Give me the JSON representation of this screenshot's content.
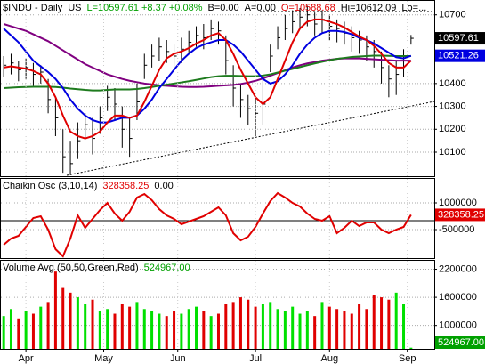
{
  "chart_data": [
    {
      "type": "ohlc",
      "title": "$INDU - Daily",
      "legend_items": [
        {
          "text": "US",
          "color": "#000000"
        },
        {
          "text": "L=10597.61 +8.37 +0.08%",
          "color": "#00a000"
        },
        {
          "text": "B=0.00",
          "color": "#000000"
        },
        {
          "text": "A=0.00",
          "color": "#000000"
        },
        {
          "text": "O=10588.68",
          "color": "#e00000"
        },
        {
          "text": "Hi=10612.09",
          "color": "#000000"
        },
        {
          "text": "Lo=...",
          "color": "#000000"
        }
      ],
      "xlim": [
        0,
        56
      ],
      "ylim": [
        9995,
        10765
      ],
      "yticks": [
        10700,
        10400,
        10300,
        10200,
        10100
      ],
      "grid": true,
      "color": "#000000",
      "high": [
        10520,
        10530,
        10500,
        10510,
        10490,
        10480,
        10420,
        10340,
        10200,
        10150,
        10230,
        10270,
        10250,
        10300,
        10390,
        10380,
        10300,
        10250,
        10400,
        10530,
        10570,
        10600,
        10590,
        10570,
        10600,
        10630,
        10650,
        10660,
        10680,
        10670,
        10610,
        10480,
        10400,
        10350,
        10340,
        10430,
        10570,
        10650,
        10700,
        10720,
        10730,
        10740,
        10710,
        10720,
        10700,
        10680,
        10670,
        10650,
        10630,
        10610,
        10590,
        10540,
        10480,
        10500,
        10550,
        10612.09
      ],
      "low": [
        10430,
        10440,
        10410,
        10420,
        10390,
        10400,
        10270,
        10170,
        10010,
        10000,
        10070,
        10160,
        10090,
        10180,
        10280,
        10240,
        10120,
        10080,
        10240,
        10420,
        10470,
        10500,
        10490,
        10470,
        10490,
        10530,
        10560,
        10550,
        10590,
        10570,
        10440,
        10300,
        10250,
        10220,
        10170,
        10220,
        10450,
        10550,
        10590,
        10620,
        10640,
        10650,
        10610,
        10620,
        10590,
        10580,
        10570,
        10540,
        10530,
        10500,
        10470,
        10400,
        10340,
        10350,
        10430,
        10570
      ],
      "close": [
        10480,
        10490,
        10460,
        10470,
        10440,
        10450,
        10330,
        10250,
        10080,
        10050,
        10150,
        10220,
        10160,
        10250,
        10340,
        10310,
        10200,
        10160,
        10320,
        10480,
        10520,
        10560,
        10540,
        10520,
        10550,
        10580,
        10610,
        10600,
        10640,
        10630,
        10500,
        10380,
        10330,
        10290,
        10270,
        10310,
        10520,
        10600,
        10640,
        10670,
        10690,
        10700,
        10660,
        10680,
        10650,
        10640,
        10620,
        10600,
        10590,
        10560,
        10540,
        10470,
        10420,
        10440,
        10500,
        10597.61
      ],
      "overlays": [
        {
          "color": "#800080",
          "values": [
            10660,
            10650,
            10640,
            10630,
            10615,
            10600,
            10585,
            10565,
            10545,
            10525,
            10505,
            10485,
            10470,
            10455,
            10440,
            10430,
            10420,
            10412,
            10406,
            10400,
            10396,
            10392,
            10390,
            10388,
            10386,
            10385,
            10385,
            10386,
            10388,
            10390,
            10392,
            10394,
            10398,
            10404,
            10412,
            10422,
            10434,
            10446,
            10458,
            10470,
            10480,
            10488,
            10494,
            10500,
            10504,
            10508,
            10510,
            10510,
            10510,
            10508,
            10506,
            10504,
            10502,
            10500,
            10500,
            10500
          ]
        },
        {
          "color": "#1e7b1e",
          "values": [
            10380,
            10382,
            10384,
            10385,
            10386,
            10386,
            10386,
            10385,
            10382,
            10378,
            10375,
            10372,
            10370,
            10370,
            10372,
            10374,
            10374,
            10374,
            10376,
            10380,
            10385,
            10390,
            10395,
            10400,
            10405,
            10410,
            10416,
            10422,
            10428,
            10432,
            10434,
            10434,
            10433,
            10432,
            10432,
            10435,
            10440,
            10448,
            10456,
            10464,
            10472,
            10480,
            10488,
            10495,
            10502,
            10508,
            10512,
            10516,
            10518,
            10520,
            10522,
            10522,
            10521,
            10520,
            10520,
            10520
          ]
        },
        {
          "color": "#0000e0",
          "values": [
            10640,
            10610,
            10580,
            10540,
            10500,
            10475,
            10450,
            10420,
            10380,
            10330,
            10290,
            10260,
            10240,
            10230,
            10230,
            10240,
            10250,
            10250,
            10260,
            10290,
            10330,
            10380,
            10420,
            10460,
            10500,
            10530,
            10555,
            10570,
            10580,
            10590,
            10590,
            10570,
            10540,
            10500,
            10460,
            10420,
            10400,
            10410,
            10440,
            10480,
            10530,
            10570,
            10600,
            10620,
            10630,
            10630,
            10625,
            10615,
            10600,
            10590,
            10575,
            10555,
            10535,
            10515,
            10510,
            10521.26
          ]
        },
        {
          "color": "#e00000",
          "values": [
            10470,
            10475,
            10470,
            10465,
            10455,
            10440,
            10400,
            10340,
            10260,
            10190,
            10170,
            10160,
            10170,
            10190,
            10230,
            10260,
            10260,
            10250,
            10260,
            10320,
            10390,
            10460,
            10510,
            10530,
            10540,
            10555,
            10575,
            10590,
            10610,
            10620,
            10590,
            10530,
            10460,
            10400,
            10340,
            10310,
            10340,
            10420,
            10500,
            10580,
            10640,
            10670,
            10680,
            10680,
            10670,
            10660,
            10645,
            10625,
            10605,
            10590,
            10565,
            10530,
            10490,
            10470,
            10470,
            10500
          ]
        }
      ],
      "last_labels": [
        {
          "value": 10597.61,
          "color": "#000000"
        },
        {
          "value": 10521.26,
          "color": "#0000e0"
        }
      ]
    },
    {
      "type": "line",
      "title": "Chaikin Osc (3,10,14)",
      "legend_items": [
        {
          "text": "328358.25",
          "color": "#e00000"
        },
        {
          "text": "0.00",
          "color": "#000000"
        }
      ],
      "xlim": [
        0,
        56
      ],
      "ylim": [
        -2100000,
        2400000
      ],
      "yticks": [
        1000000,
        -500000
      ],
      "grid": true,
      "zero_line": true,
      "color": "#e00000",
      "values": [
        -1350000,
        -1000000,
        -850000,
        -350000,
        150000,
        250000,
        -500000,
        -1600000,
        -2000000,
        -1000000,
        300000,
        -400000,
        100000,
        600000,
        1000000,
        400000,
        0,
        500000,
        1300000,
        1500000,
        1150000,
        650000,
        300000,
        100000,
        -200000,
        -50000,
        100000,
        250000,
        500000,
        750000,
        300000,
        -700000,
        -1100000,
        -900000,
        -350000,
        400000,
        1100000,
        1550000,
        1300000,
        1000000,
        800000,
        400000,
        100000,
        0,
        250000,
        -700000,
        -400000,
        0,
        -300000,
        -100000,
        -100000,
        -500000,
        -700000,
        -500000,
        -350000,
        328358.25
      ],
      "last_labels": [
        {
          "value": 328358.25,
          "color": "#e00000"
        }
      ]
    },
    {
      "type": "bar",
      "title": "Volume Avg (50,50,Green,Red)",
      "legend_items": [
        {
          "text": "524967.00",
          "color": "#00a000"
        }
      ],
      "xlim": [
        0,
        56
      ],
      "ylim": [
        500000,
        2400000
      ],
      "yticks": [
        2200000,
        1600000,
        1000000
      ],
      "grid": true,
      "up_color": "#00e000",
      "down_color": "#e00000",
      "values": [
        1200000,
        1350000,
        1150000,
        1300000,
        1250000,
        1400000,
        1500000,
        2150000,
        1800000,
        1700000,
        1600000,
        1450000,
        1550000,
        1300000,
        1350000,
        1250000,
        1450000,
        1400000,
        1500000,
        1350000,
        1300000,
        1250000,
        1200000,
        1300000,
        1250000,
        1350000,
        1400000,
        1300000,
        1200000,
        1250000,
        1450000,
        1500000,
        1600000,
        1550000,
        1400000,
        1450000,
        1500000,
        1350000,
        1300000,
        1400000,
        1250000,
        1300000,
        1200000,
        1500000,
        1400000,
        1350000,
        1300000,
        1250000,
        1450000,
        1350000,
        1650000,
        1600000,
        1550000,
        1700000,
        1450000,
        524967
      ],
      "xticks": [
        {
          "value": 3.5,
          "label": "Apr"
        },
        {
          "value": 14,
          "label": "May"
        },
        {
          "value": 24,
          "label": "Jun"
        },
        {
          "value": 34.5,
          "label": "Jul"
        },
        {
          "value": 44.5,
          "label": "Aug"
        },
        {
          "value": 55,
          "label": "Sep"
        }
      ],
      "last_labels": [
        {
          "value": 524967,
          "label": "524967.00",
          "color": "#00a000"
        }
      ]
    }
  ]
}
